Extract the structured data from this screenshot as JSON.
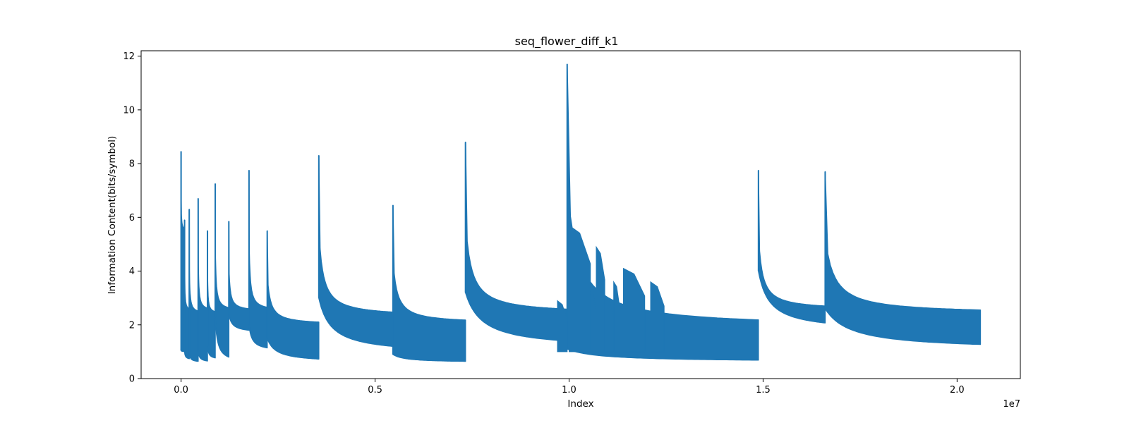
{
  "chart_data": {
    "type": "line",
    "title": "seq_flower_diff_k1",
    "xlabel": "Index",
    "ylabel": "Information Content(bits/symbol)",
    "x_offset_label": "1e7",
    "xlim": [
      -1030000,
      21630000
    ],
    "ylim": [
      0,
      12.2
    ],
    "xticks": [
      0,
      5000000,
      10000000,
      15000000,
      20000000
    ],
    "xtick_labels": [
      "0.0",
      "0.5",
      "1.0",
      "1.5",
      "2.0"
    ],
    "yticks": [
      0,
      2,
      4,
      6,
      8,
      10,
      12
    ],
    "ytick_labels": [
      "0",
      "2",
      "4",
      "6",
      "8",
      "10",
      "12"
    ],
    "grid": false,
    "legend": "none",
    "color": "#1f77b4",
    "segments": [
      {
        "start": 0,
        "end": 90000,
        "peak": 8.45,
        "top_end": 5.5,
        "floor_start": 1.05,
        "floor_end": 1.0
      },
      {
        "start": 90000,
        "end": 210000,
        "peak": 5.9,
        "top_end": 2.5,
        "floor_start": 1.0,
        "floor_end": 0.7
      },
      {
        "start": 210000,
        "end": 440000,
        "peak": 6.3,
        "top_end": 2.4,
        "floor_start": 0.9,
        "floor_end": 0.6
      },
      {
        "start": 440000,
        "end": 680000,
        "peak": 6.7,
        "top_end": 2.5,
        "floor_start": 1.0,
        "floor_end": 0.6
      },
      {
        "start": 680000,
        "end": 880000,
        "peak": 5.5,
        "top_end": 2.4,
        "floor_start": 1.2,
        "floor_end": 0.7
      },
      {
        "start": 880000,
        "end": 1230000,
        "peak": 7.25,
        "top_end": 2.5,
        "floor_start": 2.3,
        "floor_end": 0.55
      },
      {
        "start": 1230000,
        "end": 1750000,
        "peak": 5.85,
        "top_end": 2.5,
        "floor_start": 2.4,
        "floor_end": 1.7
      },
      {
        "start": 1750000,
        "end": 2220000,
        "peak": 7.75,
        "top_end": 2.5,
        "floor_start": 2.0,
        "floor_end": 1.0
      },
      {
        "start": 2220000,
        "end": 3550000,
        "peak": 5.5,
        "top_end": 2.0,
        "floor_start": 1.5,
        "floor_end": 0.6
      },
      {
        "start": 3550000,
        "end": 5460000,
        "peak": 8.3,
        "top_end": 2.3,
        "floor_start": 3.0,
        "floor_end": 0.9
      },
      {
        "start": 5460000,
        "end": 7330000,
        "peak": 6.45,
        "top_end": 2.05,
        "floor_start": 0.9,
        "floor_end": 0.6
      },
      {
        "start": 7330000,
        "end": 9950000,
        "peak": 8.8,
        "top_end": 2.4,
        "floor_start": 3.2,
        "floor_end": 1.1
      },
      {
        "start": 9950000,
        "end": 14880000,
        "peak": 11.7,
        "top_end": 1.9,
        "floor_start": 1.1,
        "floor_end": 0.62
      },
      {
        "start": 14880000,
        "end": 16600000,
        "peak": 7.75,
        "top_end": 2.55,
        "floor_start": 4.0,
        "floor_end": 1.75
      },
      {
        "start": 16600000,
        "end": 20600000,
        "peak": 7.7,
        "top_end": 2.4,
        "floor_start": 2.6,
        "floor_end": 1.05
      }
    ],
    "bumps": [
      {
        "start": 9700000,
        "end": 9950000,
        "top": 2.9
      },
      {
        "start": 10000000,
        "end": 10550000,
        "top": 5.7
      },
      {
        "start": 10550000,
        "end": 10700000,
        "top": 3.3
      },
      {
        "start": 10700000,
        "end": 10920000,
        "top": 4.9
      },
      {
        "start": 10920000,
        "end": 11150000,
        "top": 3.1
      },
      {
        "start": 11150000,
        "end": 11300000,
        "top": 3.6
      },
      {
        "start": 11400000,
        "end": 11950000,
        "top": 4.1
      },
      {
        "start": 12100000,
        "end": 12450000,
        "top": 3.6
      }
    ]
  }
}
